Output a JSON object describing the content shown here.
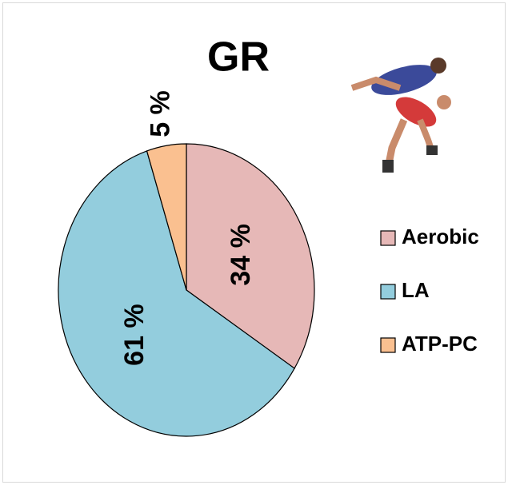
{
  "chart_data": {
    "type": "pie",
    "title": "GR",
    "categories": [
      "Aerobic",
      "LA",
      "ATP-PC"
    ],
    "values": [
      34,
      61,
      5
    ],
    "value_labels": [
      "34 %",
      "61 %",
      "5 %"
    ],
    "colors": [
      "#e6b8b7",
      "#93cddd",
      "#fac090"
    ],
    "legend": "right"
  }
}
